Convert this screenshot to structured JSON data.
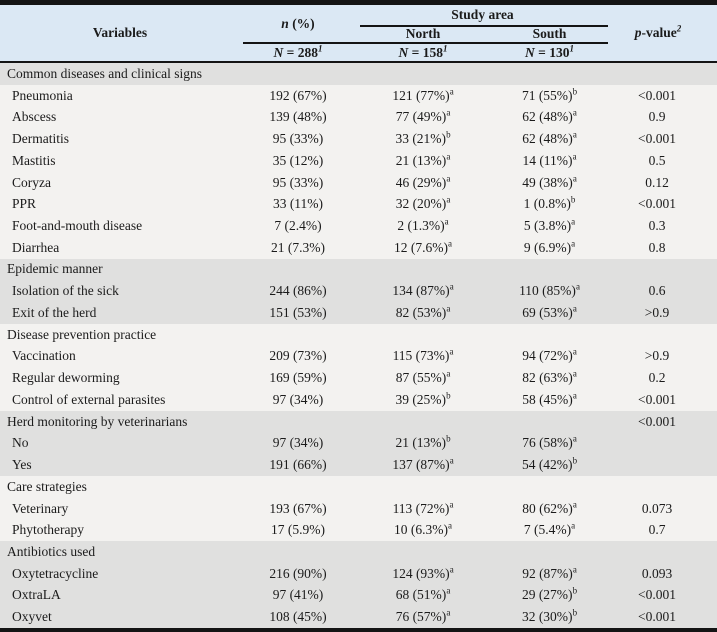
{
  "header": {
    "variables": "Variables",
    "n_pct": {
      "italic": "n",
      "rest": " (%)"
    },
    "study_area": "Study area",
    "north": "North",
    "south": "South",
    "p_value": {
      "italic": "p",
      "rest": "-value",
      "sup": "2"
    },
    "n_total": {
      "italic": "N",
      "rest": " = 288",
      "sup": "1"
    },
    "n_north": {
      "italic": "N",
      "rest": " = 158",
      "sup": "1"
    },
    "n_south": {
      "italic": "N",
      "rest": " = 130",
      "sup": "1"
    }
  },
  "colors": {
    "header_background": "#dbe8f4",
    "shaded_row": "#e0e0df",
    "plain_row": "#f3f2f0",
    "border": "#141414"
  },
  "rows": [
    {
      "type": "section",
      "shade": "gray",
      "label": "Common diseases and clinical signs",
      "n": "",
      "north": "",
      "north_s": "",
      "south": "",
      "south_s": "",
      "p": ""
    },
    {
      "type": "data",
      "shade": "white",
      "label": "Pneumonia",
      "n": "192 (67%)",
      "north": "121 (77%)",
      "north_s": "a",
      "south": "71 (55%)",
      "south_s": "b",
      "p": "<0.001"
    },
    {
      "type": "data",
      "shade": "white",
      "label": "Abscess",
      "n": "139 (48%)",
      "north": "77 (49%)",
      "north_s": "a",
      "south": "62 (48%)",
      "south_s": "a",
      "p": "0.9"
    },
    {
      "type": "data",
      "shade": "white",
      "label": "Dermatitis",
      "n": "95 (33%)",
      "north": "33 (21%)",
      "north_s": "b",
      "south": "62 (48%)",
      "south_s": "a",
      "p": "<0.001"
    },
    {
      "type": "data",
      "shade": "white",
      "label": "Mastitis",
      "n": "35 (12%)",
      "north": "21 (13%)",
      "north_s": "a",
      "south": "14 (11%)",
      "south_s": "a",
      "p": "0.5"
    },
    {
      "type": "data",
      "shade": "white",
      "label": "Coryza",
      "n": "95 (33%)",
      "north": "46 (29%)",
      "north_s": "a",
      "south": "49 (38%)",
      "south_s": "a",
      "p": "0.12"
    },
    {
      "type": "data",
      "shade": "white",
      "label": "PPR",
      "n": "33 (11%)",
      "north": "32 (20%)",
      "north_s": "a",
      "south": "1 (0.8%)",
      "south_s": "b",
      "p": "<0.001"
    },
    {
      "type": "data",
      "shade": "white",
      "label": "Foot-and-mouth disease",
      "n": "7 (2.4%)",
      "north": "2 (1.3%)",
      "north_s": "a",
      "south": "5 (3.8%)",
      "south_s": "a",
      "p": "0.3"
    },
    {
      "type": "data",
      "shade": "white",
      "label": "Diarrhea",
      "n": "21 (7.3%)",
      "north": "12 (7.6%)",
      "north_s": "a",
      "south": "9 (6.9%)",
      "south_s": "a",
      "p": "0.8"
    },
    {
      "type": "section",
      "shade": "gray",
      "label": "Epidemic manner",
      "n": "",
      "north": "",
      "north_s": "",
      "south": "",
      "south_s": "",
      "p": ""
    },
    {
      "type": "data",
      "shade": "gray",
      "label": "Isolation of the sick",
      "n": "244 (86%)",
      "north": "134 (87%)",
      "north_s": "a",
      "south": "110 (85%)",
      "south_s": "a",
      "p": "0.6"
    },
    {
      "type": "data",
      "shade": "gray",
      "label": "Exit of the herd",
      "n": "151 (53%)",
      "north": "82 (53%)",
      "north_s": "a",
      "south": "69 (53%)",
      "south_s": "a",
      "p": ">0.9"
    },
    {
      "type": "section",
      "shade": "white",
      "label": "Disease prevention practice",
      "n": "",
      "north": "",
      "north_s": "",
      "south": "",
      "south_s": "",
      "p": ""
    },
    {
      "type": "data",
      "shade": "white",
      "label": "Vaccination",
      "n": "209 (73%)",
      "north": "115 (73%)",
      "north_s": "a",
      "south": "94 (72%)",
      "south_s": "a",
      "p": ">0.9"
    },
    {
      "type": "data",
      "shade": "white",
      "label": "Regular deworming",
      "n": "169 (59%)",
      "north": "87 (55%)",
      "north_s": "a",
      "south": "82 (63%)",
      "south_s": "a",
      "p": "0.2"
    },
    {
      "type": "data",
      "shade": "white",
      "label": "Control of external parasites",
      "n": "97 (34%)",
      "north": "39 (25%)",
      "north_s": "b",
      "south": "58 (45%)",
      "south_s": "a",
      "p": "<0.001"
    },
    {
      "type": "section",
      "shade": "gray",
      "label": "Herd monitoring by veterinarians",
      "n": "",
      "north": "",
      "north_s": "",
      "south": "",
      "south_s": "",
      "p": "<0.001"
    },
    {
      "type": "data",
      "shade": "gray",
      "label": "No",
      "n": "97 (34%)",
      "north": "21 (13%)",
      "north_s": "b",
      "south": "76 (58%)",
      "south_s": "a",
      "p": ""
    },
    {
      "type": "data",
      "shade": "gray",
      "label": "Yes",
      "n": "191 (66%)",
      "north": "137 (87%)",
      "north_s": "a",
      "south": "54 (42%)",
      "south_s": "b",
      "p": ""
    },
    {
      "type": "section",
      "shade": "white",
      "label": "Care strategies",
      "n": "",
      "north": "",
      "north_s": "",
      "south": "",
      "south_s": "",
      "p": ""
    },
    {
      "type": "data",
      "shade": "white",
      "label": "Veterinary",
      "n": "193 (67%)",
      "north": "113 (72%)",
      "north_s": "a",
      "south": "80 (62%)",
      "south_s": "a",
      "p": "0.073"
    },
    {
      "type": "data",
      "shade": "white",
      "label": "Phytotherapy",
      "n": "17 (5.9%)",
      "north": "10 (6.3%)",
      "north_s": "a",
      "south": "7 (5.4%)",
      "south_s": "a",
      "p": "0.7"
    },
    {
      "type": "section",
      "shade": "gray",
      "label": "Antibiotics used",
      "n": "",
      "north": "",
      "north_s": "",
      "south": "",
      "south_s": "",
      "p": ""
    },
    {
      "type": "data",
      "shade": "gray",
      "label": "Oxytetracycline",
      "n": "216 (90%)",
      "north": "124 (93%)",
      "north_s": "a",
      "south": "92 (87%)",
      "south_s": "a",
      "p": "0.093"
    },
    {
      "type": "data",
      "shade": "gray",
      "label": "OxtraLA",
      "n": "97 (41%)",
      "north": "68 (51%)",
      "north_s": "a",
      "south": "29 (27%)",
      "south_s": "b",
      "p": "<0.001"
    },
    {
      "type": "data",
      "shade": "gray",
      "label": "Oxyvet",
      "n": "108 (45%)",
      "north": "76 (57%)",
      "north_s": "a",
      "south": "32 (30%)",
      "south_s": "b",
      "p": "<0.001"
    }
  ]
}
